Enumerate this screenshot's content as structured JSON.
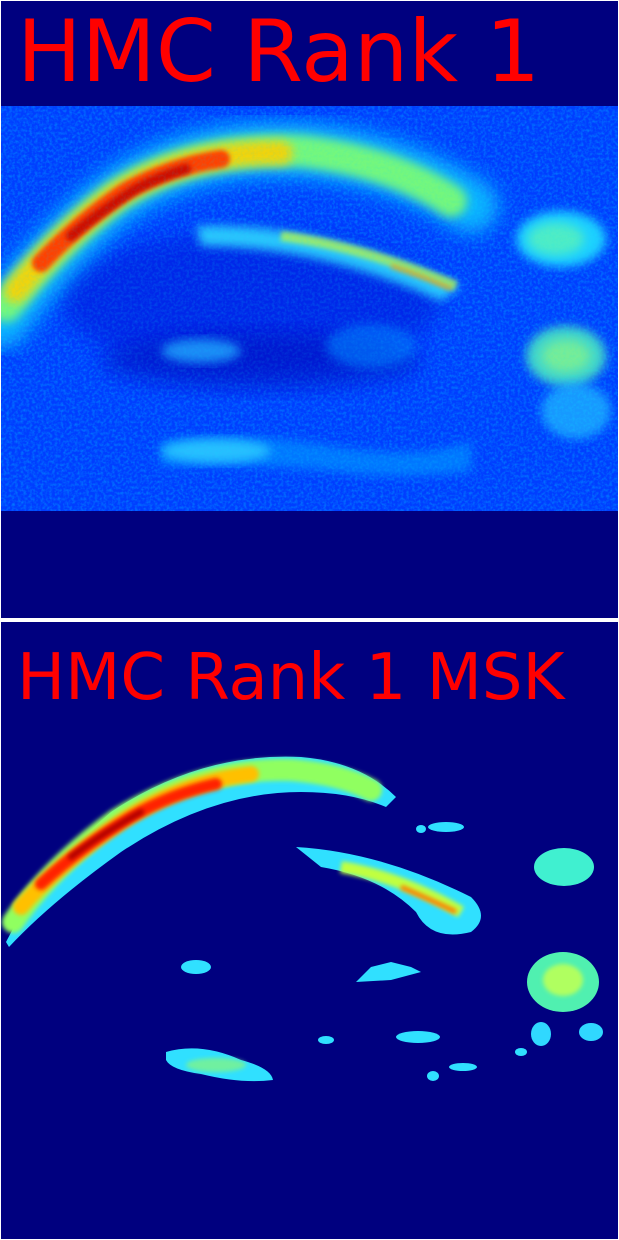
{
  "panels": [
    {
      "title": "HMC Rank 1",
      "title_color": "#ff0000",
      "background_color": "#00007f",
      "colormap": "jet"
    },
    {
      "title": "HMC Rank 1 MSK",
      "title_color": "#ff0000",
      "background_color": "#00007f",
      "colormap": "jet"
    }
  ]
}
